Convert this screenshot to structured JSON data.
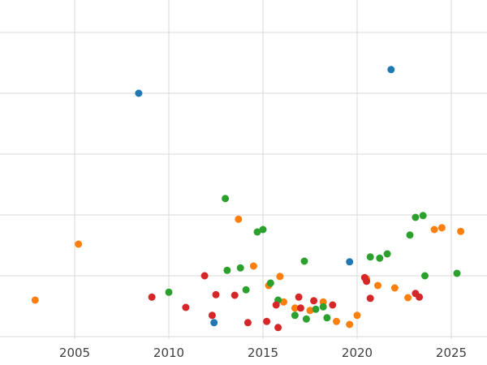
{
  "chart_data": {
    "type": "scatter",
    "title": "",
    "xlabel": "",
    "ylabel": "",
    "xlim": [
      2001.0,
      2026.9
    ],
    "ylim": [
      0,
      5.5
    ],
    "grid": true,
    "grid_color": "#d9d9d9",
    "tick_label_color": "#3f3f3f",
    "legend_position": "none",
    "xticks": [
      2005,
      2010,
      2015,
      2020,
      2025
    ],
    "xtick_labels": [
      "2005",
      "2010",
      "2015",
      "2020",
      "2025"
    ],
    "yticks": [
      0,
      1,
      2,
      3,
      4,
      5
    ],
    "ytick_labels": [],
    "series": [
      {
        "name": "blue-series",
        "color": "#1f77b4",
        "points": [
          [
            2008.4,
            4.0
          ],
          [
            2012.4,
            0.23
          ],
          [
            2019.6,
            1.23
          ],
          [
            2021.8,
            4.39
          ]
        ]
      },
      {
        "name": "orange-series",
        "color": "#ff7f0e",
        "points": [
          [
            2002.9,
            0.6
          ],
          [
            2005.2,
            1.52
          ],
          [
            2013.7,
            1.93
          ],
          [
            2014.5,
            1.16
          ],
          [
            2015.3,
            0.84
          ],
          [
            2015.9,
            0.99
          ],
          [
            2016.1,
            0.57
          ],
          [
            2016.7,
            0.47
          ],
          [
            2017.5,
            0.43
          ],
          [
            2018.2,
            0.57
          ],
          [
            2018.9,
            0.25
          ],
          [
            2019.6,
            0.2
          ],
          [
            2020.0,
            0.35
          ],
          [
            2020.5,
            0.95
          ],
          [
            2021.1,
            0.84
          ],
          [
            2022.0,
            0.8
          ],
          [
            2022.7,
            0.64
          ],
          [
            2024.1,
            1.76
          ],
          [
            2024.5,
            1.79
          ],
          [
            2025.5,
            1.73
          ]
        ]
      },
      {
        "name": "green-series",
        "color": "#2ca02c",
        "points": [
          [
            2010.0,
            0.73
          ],
          [
            2013.0,
            2.27
          ],
          [
            2013.1,
            1.09
          ],
          [
            2013.8,
            1.13
          ],
          [
            2014.1,
            0.77
          ],
          [
            2014.7,
            1.72
          ],
          [
            2015.0,
            1.76
          ],
          [
            2015.4,
            0.88
          ],
          [
            2015.8,
            0.6
          ],
          [
            2016.7,
            0.35
          ],
          [
            2017.2,
            1.24
          ],
          [
            2017.3,
            0.29
          ],
          [
            2017.8,
            0.45
          ],
          [
            2018.2,
            0.49
          ],
          [
            2018.4,
            0.31
          ],
          [
            2020.7,
            1.31
          ],
          [
            2021.2,
            1.29
          ],
          [
            2021.6,
            1.36
          ],
          [
            2022.8,
            1.67
          ],
          [
            2023.1,
            1.96
          ],
          [
            2023.5,
            1.99
          ],
          [
            2023.6,
            1.0
          ],
          [
            2025.3,
            1.04
          ]
        ]
      },
      {
        "name": "red-series",
        "color": "#d62728",
        "points": [
          [
            2009.1,
            0.65
          ],
          [
            2010.9,
            0.48
          ],
          [
            2011.9,
            1.0
          ],
          [
            2012.3,
            0.35
          ],
          [
            2012.5,
            0.69
          ],
          [
            2013.5,
            0.68
          ],
          [
            2014.2,
            0.23
          ],
          [
            2015.2,
            0.25
          ],
          [
            2015.7,
            0.52
          ],
          [
            2015.8,
            0.15
          ],
          [
            2016.9,
            0.65
          ],
          [
            2017.0,
            0.47
          ],
          [
            2017.7,
            0.59
          ],
          [
            2018.7,
            0.52
          ],
          [
            2020.4,
            0.97
          ],
          [
            2020.5,
            0.91
          ],
          [
            2020.7,
            0.63
          ],
          [
            2023.1,
            0.71
          ],
          [
            2023.3,
            0.65
          ]
        ]
      }
    ],
    "marker": {
      "radius": 4.5
    }
  }
}
